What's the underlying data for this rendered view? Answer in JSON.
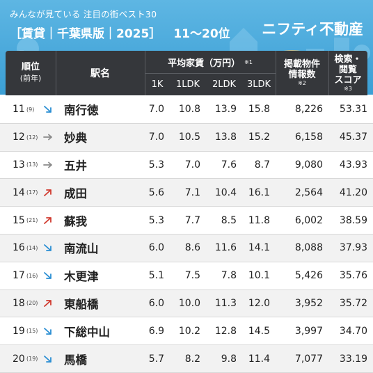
{
  "header": {
    "subtitle": "みんなが見ている 注目の街ベスト30",
    "title": "［賃貸｜千葉県版｜2025］",
    "range": "11〜20位",
    "brand": "ニフティ不動産"
  },
  "table": {
    "columns": {
      "rank": "順位",
      "rank_sub": "(前年)",
      "station": "駅名",
      "rent": "平均家賃（万円）",
      "rent_note": "※1",
      "k1": "1K",
      "ldk1": "1LDK",
      "ldk2": "2LDK",
      "ldk3": "3LDK",
      "count_line1": "掲載物件",
      "count_line2": "情報数",
      "count_note": "※2",
      "score_line1": "検索・",
      "score_line2": "閲覧",
      "score_line3": "スコア",
      "score_note": "※3"
    },
    "rows": [
      {
        "rank": "11",
        "prev": "(9)",
        "trend": "down",
        "station": "南行徳",
        "k1": "7.0",
        "ldk1": "10.8",
        "ldk2": "13.9",
        "ldk3": "15.8",
        "count": "8,226",
        "score": "53.31"
      },
      {
        "rank": "12",
        "prev": "(12)",
        "trend": "flat",
        "station": "妙典",
        "k1": "7.0",
        "ldk1": "10.5",
        "ldk2": "13.8",
        "ldk3": "15.2",
        "count": "6,158",
        "score": "45.37"
      },
      {
        "rank": "13",
        "prev": "(13)",
        "trend": "flat",
        "station": "五井",
        "k1": "5.3",
        "ldk1": "7.0",
        "ldk2": "7.6",
        "ldk3": "8.7",
        "count": "9,080",
        "score": "43.93"
      },
      {
        "rank": "14",
        "prev": "(17)",
        "trend": "up",
        "station": "成田",
        "k1": "5.6",
        "ldk1": "7.1",
        "ldk2": "10.4",
        "ldk3": "16.1",
        "count": "2,564",
        "score": "41.20"
      },
      {
        "rank": "15",
        "prev": "(21)",
        "trend": "up",
        "station": "蘇我",
        "k1": "5.3",
        "ldk1": "7.7",
        "ldk2": "8.5",
        "ldk3": "11.8",
        "count": "6,002",
        "score": "38.59"
      },
      {
        "rank": "16",
        "prev": "(14)",
        "trend": "down",
        "station": "南流山",
        "k1": "6.0",
        "ldk1": "8.6",
        "ldk2": "11.6",
        "ldk3": "14.1",
        "count": "8,088",
        "score": "37.93"
      },
      {
        "rank": "17",
        "prev": "(16)",
        "trend": "down",
        "station": "木更津",
        "k1": "5.1",
        "ldk1": "7.5",
        "ldk2": "7.8",
        "ldk3": "10.1",
        "count": "5,426",
        "score": "35.76"
      },
      {
        "rank": "18",
        "prev": "(20)",
        "trend": "up",
        "station": "東船橋",
        "k1": "6.0",
        "ldk1": "10.0",
        "ldk2": "11.3",
        "ldk3": "12.0",
        "count": "3,952",
        "score": "35.72"
      },
      {
        "rank": "19",
        "prev": "(15)",
        "trend": "down",
        "station": "下総中山",
        "k1": "6.9",
        "ldk1": "10.2",
        "ldk2": "12.8",
        "ldk3": "14.5",
        "count": "3,997",
        "score": "34.70"
      },
      {
        "rank": "20",
        "prev": "(19)",
        "trend": "down",
        "station": "馬橋",
        "k1": "5.7",
        "ldk1": "8.2",
        "ldk2": "9.8",
        "ldk3": "11.4",
        "count": "7,077",
        "score": "33.19"
      }
    ]
  },
  "icons": {
    "down": "trend-down-arrow-icon",
    "flat": "trend-flat-arrow-icon",
    "up": "trend-up-arrow-icon"
  },
  "colors": {
    "header_bg": "#4aa9dc",
    "table_header_bg": "#35373b",
    "row_alt": "#f2f2f2",
    "arrow_down": "#2a8ed3",
    "arrow_flat": "#8a8a8a",
    "arrow_up": "#d03a2f"
  }
}
